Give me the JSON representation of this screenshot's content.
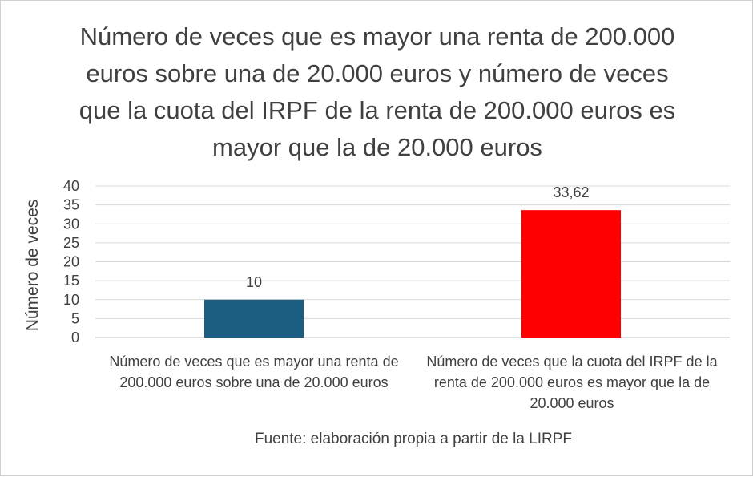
{
  "chart_data": {
    "type": "bar",
    "title": "Número de veces que es mayor una renta de 200.000 euros sobre una de 20.000 euros y número de veces que la cuota del IRPF de la renta de 200.000 euros es mayor que la de 20.000 euros",
    "ylabel": "Número de veces",
    "xlabel": "",
    "categories": [
      "Número de veces que es mayor una renta de 200.000 euros sobre una de 20.000 euros",
      "Número de veces que la cuota del IRPF de la renta de 200.000 euros es mayor que la de 20.000 euros"
    ],
    "values": [
      10,
      33.62
    ],
    "data_labels": [
      "10",
      "33,62"
    ],
    "bar_colors": [
      "#1b5e82",
      "#ff0000"
    ],
    "ylim": [
      0,
      40
    ],
    "yticks": [
      0,
      5,
      10,
      15,
      20,
      25,
      30,
      35,
      40
    ],
    "grid": true,
    "legend": "none",
    "source": "Fuente: elaboración propia a partir de la LIRPF"
  }
}
